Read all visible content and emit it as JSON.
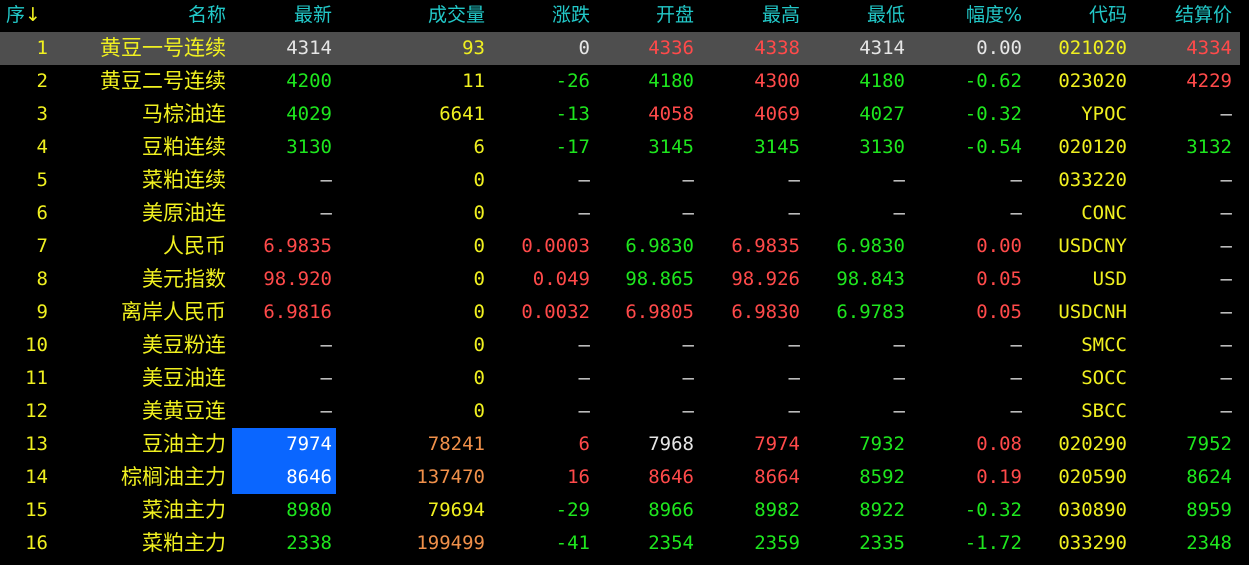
{
  "header": {
    "index": "序",
    "sort_arrow": "↓",
    "columns": [
      "名称",
      "最新",
      "成交量",
      "涨跌",
      "开盘",
      "最高",
      "最低",
      "幅度%",
      "代码",
      "结算价"
    ]
  },
  "colors": {
    "white": "#e6e6e6",
    "red": "#ff4a4a",
    "green": "#1ee61e",
    "yellow": "#f0f020",
    "orange": "#f0904a",
    "header": "#22c8c8",
    "selected_row": "#4e4e4e",
    "highlight": "#0a66ff"
  },
  "selected_row": 1,
  "rows": [
    {
      "no": "1",
      "name": "黄豆一号连续",
      "cells": [
        [
          "4314",
          "w"
        ],
        [
          "93",
          "y"
        ],
        [
          "0",
          "w"
        ],
        [
          "4336",
          "r"
        ],
        [
          "4338",
          "r"
        ],
        [
          "4314",
          "w"
        ],
        [
          "0.00",
          "w"
        ],
        [
          "021020",
          "y"
        ],
        [
          "4334",
          "r"
        ]
      ]
    },
    {
      "no": "2",
      "name": "黄豆二号连续",
      "cells": [
        [
          "4200",
          "g"
        ],
        [
          "11",
          "y"
        ],
        [
          "-26",
          "g"
        ],
        [
          "4180",
          "g"
        ],
        [
          "4300",
          "r"
        ],
        [
          "4180",
          "g"
        ],
        [
          "-0.62",
          "g"
        ],
        [
          "023020",
          "y"
        ],
        [
          "4229",
          "r"
        ]
      ]
    },
    {
      "no": "3",
      "name": "马棕油连",
      "cells": [
        [
          "4029",
          "g"
        ],
        [
          "6641",
          "y"
        ],
        [
          "-13",
          "g"
        ],
        [
          "4058",
          "r"
        ],
        [
          "4069",
          "r"
        ],
        [
          "4027",
          "g"
        ],
        [
          "-0.32",
          "g"
        ],
        [
          "YPOC",
          "y"
        ],
        [
          "—",
          "w"
        ]
      ]
    },
    {
      "no": "4",
      "name": "豆粕连续",
      "cells": [
        [
          "3130",
          "g"
        ],
        [
          "6",
          "y"
        ],
        [
          "-17",
          "g"
        ],
        [
          "3145",
          "g"
        ],
        [
          "3145",
          "g"
        ],
        [
          "3130",
          "g"
        ],
        [
          "-0.54",
          "g"
        ],
        [
          "020120",
          "y"
        ],
        [
          "3132",
          "g"
        ]
      ]
    },
    {
      "no": "5",
      "name": "菜粕连续",
      "cells": [
        [
          "—",
          "w"
        ],
        [
          "0",
          "y"
        ],
        [
          "—",
          "w"
        ],
        [
          "—",
          "w"
        ],
        [
          "—",
          "w"
        ],
        [
          "—",
          "w"
        ],
        [
          "—",
          "w"
        ],
        [
          "033220",
          "y"
        ],
        [
          "—",
          "w"
        ]
      ]
    },
    {
      "no": "6",
      "name": "美原油连",
      "cells": [
        [
          "—",
          "w"
        ],
        [
          "0",
          "y"
        ],
        [
          "—",
          "w"
        ],
        [
          "—",
          "w"
        ],
        [
          "—",
          "w"
        ],
        [
          "—",
          "w"
        ],
        [
          "—",
          "w"
        ],
        [
          "CONC",
          "y"
        ],
        [
          "—",
          "w"
        ]
      ]
    },
    {
      "no": "7",
      "name": "人民币",
      "cells": [
        [
          "6.9835",
          "r"
        ],
        [
          "0",
          "y"
        ],
        [
          "0.0003",
          "r"
        ],
        [
          "6.9830",
          "g"
        ],
        [
          "6.9835",
          "r"
        ],
        [
          "6.9830",
          "g"
        ],
        [
          "0.00",
          "r"
        ],
        [
          "USDCNY",
          "y"
        ],
        [
          "—",
          "w"
        ]
      ]
    },
    {
      "no": "8",
      "name": "美元指数",
      "cells": [
        [
          "98.920",
          "r"
        ],
        [
          "0",
          "y"
        ],
        [
          "0.049",
          "r"
        ],
        [
          "98.865",
          "g"
        ],
        [
          "98.926",
          "r"
        ],
        [
          "98.843",
          "g"
        ],
        [
          "0.05",
          "r"
        ],
        [
          "USD",
          "y"
        ],
        [
          "—",
          "w"
        ]
      ]
    },
    {
      "no": "9",
      "name": "离岸人民币",
      "cells": [
        [
          "6.9816",
          "r"
        ],
        [
          "0",
          "y"
        ],
        [
          "0.0032",
          "r"
        ],
        [
          "6.9805",
          "r"
        ],
        [
          "6.9830",
          "r"
        ],
        [
          "6.9783",
          "g"
        ],
        [
          "0.05",
          "r"
        ],
        [
          "USDCNH",
          "y"
        ],
        [
          "—",
          "w"
        ]
      ]
    },
    {
      "no": "10",
      "name": "美豆粉连",
      "cells": [
        [
          "—",
          "w"
        ],
        [
          "0",
          "y"
        ],
        [
          "—",
          "w"
        ],
        [
          "—",
          "w"
        ],
        [
          "—",
          "w"
        ],
        [
          "—",
          "w"
        ],
        [
          "—",
          "w"
        ],
        [
          "SMCC",
          "y"
        ],
        [
          "—",
          "w"
        ]
      ]
    },
    {
      "no": "11",
      "name": "美豆油连",
      "cells": [
        [
          "—",
          "w"
        ],
        [
          "0",
          "y"
        ],
        [
          "—",
          "w"
        ],
        [
          "—",
          "w"
        ],
        [
          "—",
          "w"
        ],
        [
          "—",
          "w"
        ],
        [
          "—",
          "w"
        ],
        [
          "SOCC",
          "y"
        ],
        [
          "—",
          "w"
        ]
      ]
    },
    {
      "no": "12",
      "name": "美黄豆连",
      "cells": [
        [
          "—",
          "w"
        ],
        [
          "0",
          "y"
        ],
        [
          "—",
          "w"
        ],
        [
          "—",
          "w"
        ],
        [
          "—",
          "w"
        ],
        [
          "—",
          "w"
        ],
        [
          "—",
          "w"
        ],
        [
          "SBCC",
          "y"
        ],
        [
          "—",
          "w"
        ]
      ]
    },
    {
      "no": "13",
      "name": "豆油主力",
      "highlight_latest": true,
      "cells": [
        [
          "7974",
          "w"
        ],
        [
          "78241",
          "o"
        ],
        [
          "6",
          "r"
        ],
        [
          "7968",
          "w"
        ],
        [
          "7974",
          "r"
        ],
        [
          "7932",
          "g"
        ],
        [
          "0.08",
          "r"
        ],
        [
          "020290",
          "y"
        ],
        [
          "7952",
          "g"
        ]
      ]
    },
    {
      "no": "14",
      "name": "棕榈油主力",
      "highlight_latest": true,
      "cells": [
        [
          "8646",
          "w"
        ],
        [
          "137470",
          "o"
        ],
        [
          "16",
          "r"
        ],
        [
          "8646",
          "r"
        ],
        [
          "8664",
          "r"
        ],
        [
          "8592",
          "g"
        ],
        [
          "0.19",
          "r"
        ],
        [
          "020590",
          "y"
        ],
        [
          "8624",
          "g"
        ]
      ]
    },
    {
      "no": "15",
      "name": "菜油主力",
      "cells": [
        [
          "8980",
          "g"
        ],
        [
          "79694",
          "y"
        ],
        [
          "-29",
          "g"
        ],
        [
          "8966",
          "g"
        ],
        [
          "8982",
          "g"
        ],
        [
          "8922",
          "g"
        ],
        [
          "-0.32",
          "g"
        ],
        [
          "030890",
          "y"
        ],
        [
          "8959",
          "g"
        ]
      ]
    },
    {
      "no": "16",
      "name": "菜粕主力",
      "cells": [
        [
          "2338",
          "g"
        ],
        [
          "199499",
          "o"
        ],
        [
          "-41",
          "g"
        ],
        [
          "2354",
          "g"
        ],
        [
          "2359",
          "g"
        ],
        [
          "2335",
          "g"
        ],
        [
          "-1.72",
          "g"
        ],
        [
          "033290",
          "y"
        ],
        [
          "2348",
          "g"
        ]
      ]
    }
  ]
}
